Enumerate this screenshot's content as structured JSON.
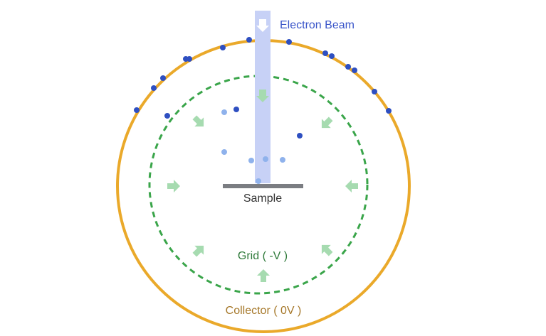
{
  "labels": {
    "beam": "Electron Beam",
    "sample": "Sample",
    "grid": "Grid ( -V )",
    "collector": "Collector ( 0V )"
  }
}
